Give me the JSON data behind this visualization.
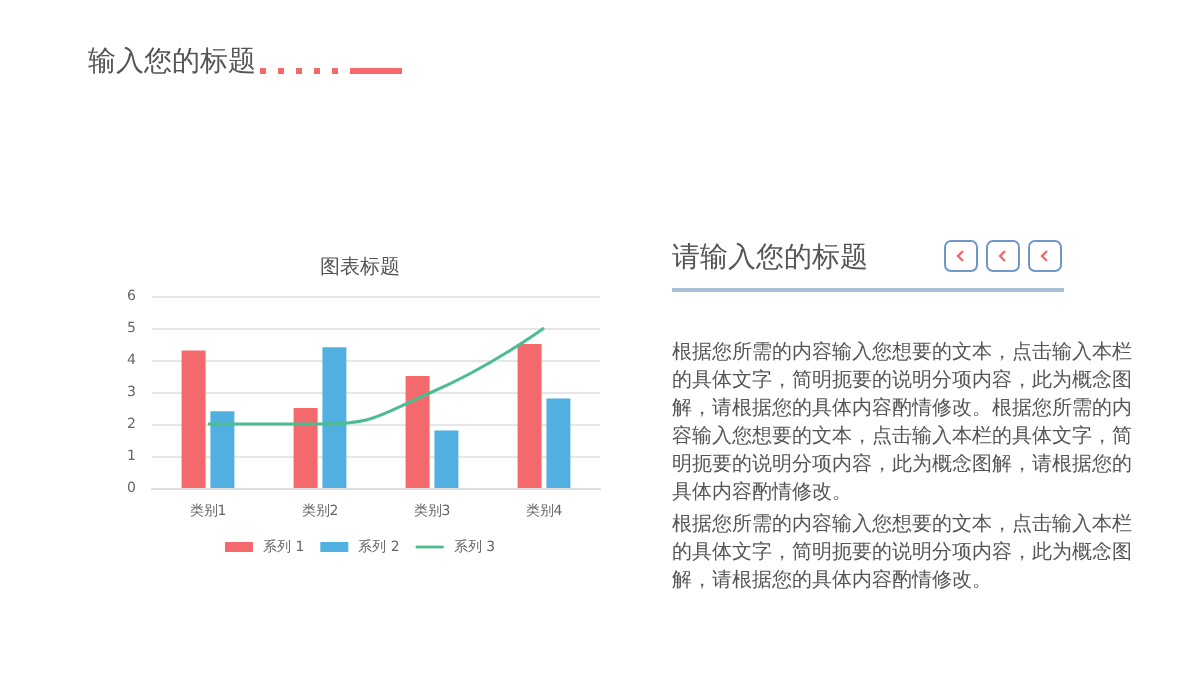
{
  "chart_data": {
    "type": "bar",
    "title": "图表标题",
    "categories": [
      "类别1",
      "类别2",
      "类别3",
      "类别4"
    ],
    "series": [
      {
        "name": "系列 1",
        "color": "#f4696b",
        "values": [
          4.3,
          2.5,
          3.5,
          4.5
        ]
      },
      {
        "name": "系列 2",
        "color": "#52b0e0",
        "values": [
          2.4,
          4.4,
          1.8,
          2.8
        ]
      },
      {
        "name": "系列 3",
        "color": "#4dbd8f",
        "type": "line",
        "values": [
          2,
          2,
          3,
          5
        ]
      }
    ],
    "ylim": [
      0,
      6
    ],
    "yticks": [
      0,
      1,
      2,
      3,
      4,
      5,
      6
    ],
    "grid": "y",
    "legend": "bottom",
    "marker": "none",
    "annotations": [
      "输入您的标题",
      "请输入您的标题",
      "根据您所需的内容输入您想要的文本，点击输入本栏的具体文字，简明扼要的说明分项内容，此为概念图解，请根据您的具体内容酌情修改。根据您所需的内容输入您想要的文本，点击输入本栏的具体文字，简明扼要的说明分项内容，此为概念图解，请根据您的具体内容酌情修改。",
      "根据您所需的内容输入您想要的文本，点击输入本栏的具体文字，简明扼要的说明分项内容，此为概念图解，请根据您的具体内容酌情修改。"
    ]
  }
}
